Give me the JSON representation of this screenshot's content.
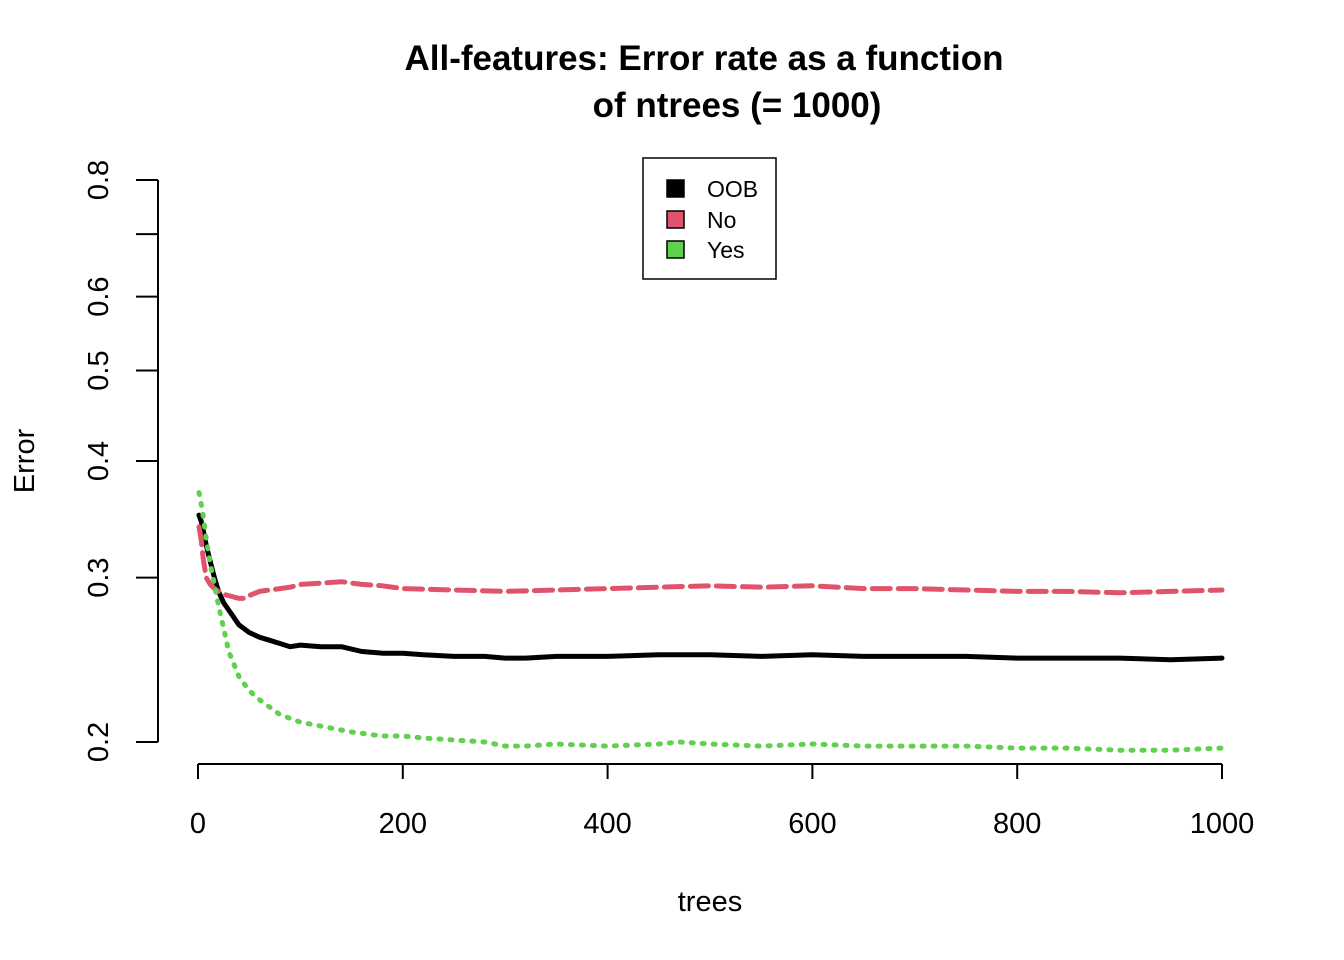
{
  "chart_data": {
    "type": "line",
    "title_lines": [
      "All-features: Error rate as a function",
      "of  ntrees (= 1000)"
    ],
    "xlabel": "trees",
    "ylabel": "Error",
    "xlim": [
      0,
      1000
    ],
    "ylim": [
      0.2,
      0.8
    ],
    "y_scale": "log",
    "x_ticks": [
      0,
      200,
      400,
      600,
      800,
      1000
    ],
    "x_tick_labels": [
      "0",
      "200",
      "400",
      "600",
      "800",
      "1000"
    ],
    "y_ticks": [
      0.2,
      0.3,
      0.4,
      0.5,
      0.6,
      0.7,
      0.8
    ],
    "y_tick_labels": [
      "0.2",
      "0.3",
      "0.4",
      "0.5",
      "0.6",
      "",
      "0.8"
    ],
    "grid": false,
    "legend_position": "top-center",
    "series": [
      {
        "name": "OOB",
        "color": "#000000",
        "dash": "solid",
        "x": [
          1,
          3,
          5,
          8,
          12,
          16,
          20,
          25,
          30,
          40,
          50,
          60,
          70,
          80,
          90,
          100,
          120,
          140,
          160,
          180,
          200,
          220,
          250,
          280,
          300,
          320,
          350,
          400,
          450,
          480,
          500,
          550,
          600,
          650,
          700,
          750,
          800,
          850,
          900,
          950,
          1000
        ],
        "y": [
          0.35,
          0.345,
          0.338,
          0.325,
          0.312,
          0.3,
          0.29,
          0.282,
          0.277,
          0.267,
          0.262,
          0.259,
          0.257,
          0.255,
          0.253,
          0.254,
          0.253,
          0.253,
          0.25,
          0.249,
          0.249,
          0.248,
          0.247,
          0.247,
          0.246,
          0.246,
          0.247,
          0.247,
          0.248,
          0.248,
          0.248,
          0.247,
          0.248,
          0.247,
          0.247,
          0.247,
          0.246,
          0.246,
          0.246,
          0.245,
          0.246
        ]
      },
      {
        "name": "No",
        "color": "#DF536B",
        "dash": "dashed",
        "x": [
          1,
          3,
          5,
          8,
          12,
          16,
          20,
          25,
          30,
          35,
          40,
          45,
          50,
          60,
          70,
          80,
          90,
          100,
          120,
          140,
          160,
          180,
          200,
          250,
          300,
          350,
          400,
          450,
          500,
          550,
          600,
          650,
          700,
          750,
          800,
          850,
          900,
          950,
          1000
        ],
        "y": [
          0.34,
          0.33,
          0.315,
          0.3,
          0.295,
          0.292,
          0.29,
          0.288,
          0.287,
          0.286,
          0.285,
          0.285,
          0.287,
          0.29,
          0.291,
          0.292,
          0.293,
          0.295,
          0.296,
          0.297,
          0.295,
          0.294,
          0.292,
          0.291,
          0.29,
          0.291,
          0.292,
          0.293,
          0.294,
          0.293,
          0.294,
          0.292,
          0.292,
          0.291,
          0.29,
          0.29,
          0.289,
          0.29,
          0.291
        ]
      },
      {
        "name": "Yes",
        "color": "#61D04F",
        "dash": "dotted",
        "x": [
          1,
          3,
          5,
          8,
          12,
          16,
          20,
          25,
          30,
          40,
          50,
          60,
          70,
          80,
          90,
          100,
          120,
          150,
          180,
          200,
          220,
          250,
          280,
          300,
          320,
          350,
          400,
          450,
          470,
          500,
          550,
          600,
          650,
          700,
          750,
          800,
          850,
          900,
          950,
          1000
        ],
        "y": [
          0.37,
          0.36,
          0.35,
          0.33,
          0.31,
          0.295,
          0.28,
          0.265,
          0.25,
          0.235,
          0.227,
          0.222,
          0.218,
          0.214,
          0.212,
          0.21,
          0.208,
          0.205,
          0.203,
          0.203,
          0.202,
          0.201,
          0.2,
          0.198,
          0.198,
          0.199,
          0.198,
          0.199,
          0.2,
          0.199,
          0.198,
          0.199,
          0.198,
          0.198,
          0.198,
          0.197,
          0.197,
          0.196,
          0.196,
          0.197
        ]
      }
    ]
  }
}
